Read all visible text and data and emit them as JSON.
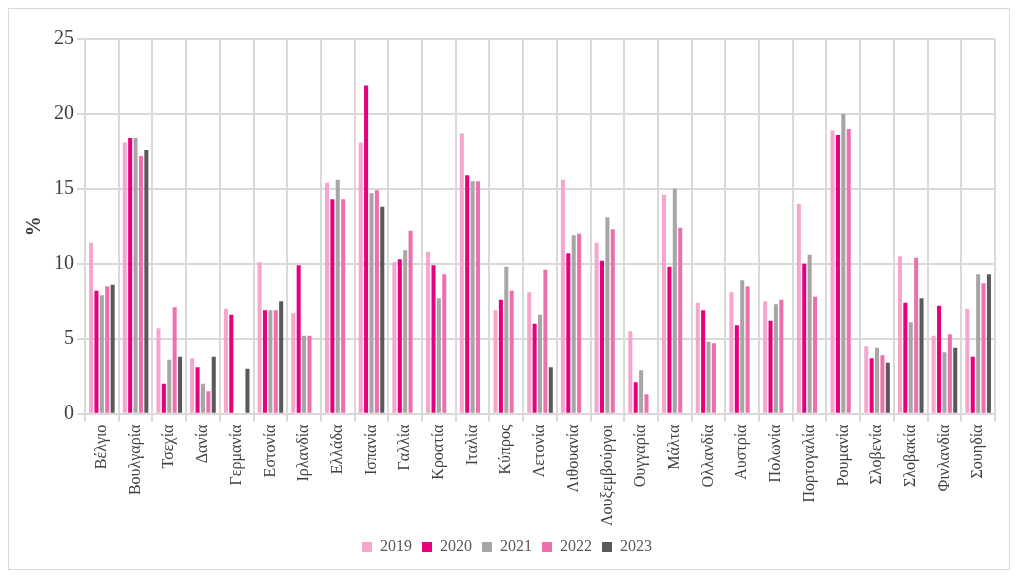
{
  "chart_data": {
    "type": "bar",
    "ylabel": "%",
    "categories": [
      "Βέλγιο",
      "Βουλγαρία",
      "Τσεχία",
      "Δανία",
      "Γερμανία",
      "Εστονία",
      "Ιρλανδία",
      "Ελλάδα",
      "Ισπανία",
      "Γαλλία",
      "Κροατία",
      "Ιταλία",
      "Κύπρος",
      "Λετονία",
      "Λιθουανία",
      "Λουξεμβούργοι",
      "Ουγγαρία",
      "Μάλτα",
      "Ολλανδία",
      "Αυστρία",
      "Πολωνία",
      "Πορτογαλία",
      "Ρουμανία",
      "Σλοβενία",
      "Σλοβακία",
      "Φινλανδία",
      "Σουηδία"
    ],
    "series": [
      {
        "name": "2019",
        "color": "#f4a6cf",
        "values": [
          11.4,
          18.1,
          5.7,
          3.7,
          7.0,
          10.1,
          6.7,
          15.4,
          18.1,
          10.1,
          10.8,
          18.7,
          6.9,
          8.1,
          15.6,
          11.4,
          5.5,
          14.6,
          7.4,
          8.1,
          7.5,
          14.0,
          18.9,
          4.5,
          10.5,
          5.2,
          7.0
        ]
      },
      {
        "name": "2020",
        "color": "#e6007e",
        "values": [
          8.2,
          18.4,
          2.0,
          3.1,
          6.6,
          6.9,
          9.9,
          14.3,
          21.9,
          10.3,
          9.9,
          15.9,
          7.6,
          6.0,
          10.7,
          10.2,
          2.1,
          9.8,
          6.9,
          5.9,
          6.2,
          10.0,
          18.6,
          3.7,
          7.4,
          7.2,
          3.8
        ]
      },
      {
        "name": "2021",
        "color": "#a6a6a6",
        "values": [
          7.9,
          18.4,
          3.6,
          2.0,
          null,
          6.9,
          5.2,
          15.6,
          14.7,
          10.9,
          7.7,
          15.5,
          9.8,
          6.6,
          11.9,
          13.1,
          2.9,
          15.0,
          4.8,
          8.9,
          7.3,
          10.6,
          20.0,
          4.4,
          6.1,
          4.1,
          9.3
        ]
      },
      {
        "name": "2022",
        "color": "#ee6fae",
        "values": [
          8.5,
          17.2,
          7.1,
          1.5,
          null,
          6.9,
          5.2,
          14.3,
          14.9,
          12.2,
          9.3,
          15.5,
          8.2,
          9.6,
          12.0,
          12.3,
          1.3,
          12.4,
          4.7,
          8.5,
          7.6,
          7.8,
          19.0,
          3.9,
          10.4,
          5.3,
          8.7
        ]
      },
      {
        "name": "2023",
        "color": "#595959",
        "values": [
          8.6,
          17.6,
          3.8,
          3.8,
          3.0,
          7.5,
          null,
          null,
          13.8,
          null,
          null,
          null,
          null,
          3.1,
          null,
          null,
          null,
          null,
          null,
          null,
          null,
          null,
          null,
          3.4,
          7.7,
          4.4,
          9.3
        ]
      }
    ],
    "ylim": [
      0,
      25
    ],
    "yticks": [
      0,
      5,
      10,
      15,
      20,
      25
    ],
    "grid": true,
    "legend": "bottom"
  }
}
